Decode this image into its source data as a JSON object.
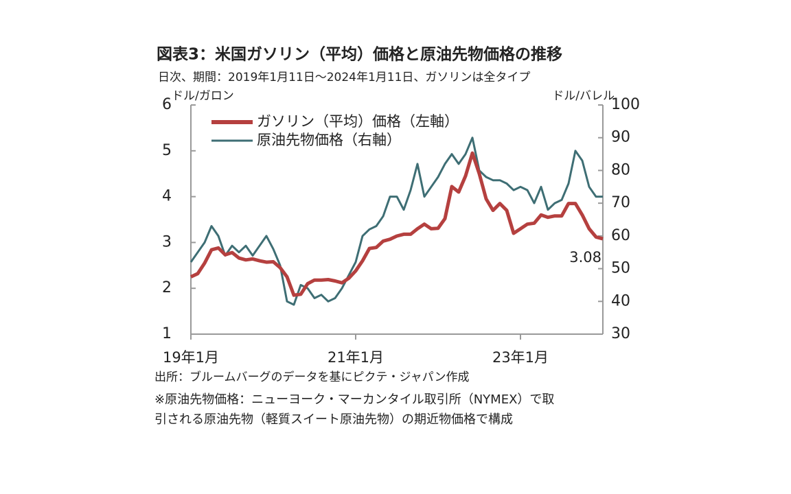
{
  "chart_data": {
    "type": "line",
    "title": "図表3：米国ガソリン（平均）価格と原油先物価格の推移",
    "subtitle": "日次、期間：2019年1月11日～2024年1月11日、ガソリンは全タイプ",
    "y_label": "ドル/ガロン",
    "y2_label": "ドル/バレル",
    "source": "出所：ブルームバーグのデータを基にピクテ・ジャパン作成",
    "notes": [
      "※原油先物価格：ニューヨーク・マーカンタイル取引所（NYMEX）で取",
      "引される原油先物（軽質スイート原油先物）の期近物価格で構成"
    ],
    "annotation": "3.08",
    "x": [
      "2019-01",
      "2019-02",
      "2019-03",
      "2019-04",
      "2019-05",
      "2019-06",
      "2019-07",
      "2019-08",
      "2019-09",
      "2019-10",
      "2019-11",
      "2019-12",
      "2020-01",
      "2020-02",
      "2020-03",
      "2020-04",
      "2020-05",
      "2020-06",
      "2020-07",
      "2020-08",
      "2020-09",
      "2020-10",
      "2020-11",
      "2020-12",
      "2021-01",
      "2021-02",
      "2021-03",
      "2021-04",
      "2021-05",
      "2021-06",
      "2021-07",
      "2021-08",
      "2021-09",
      "2021-10",
      "2021-11",
      "2021-12",
      "2022-01",
      "2022-02",
      "2022-03",
      "2022-04",
      "2022-05",
      "2022-06",
      "2022-07",
      "2022-08",
      "2022-09",
      "2022-10",
      "2022-11",
      "2022-12",
      "2023-01",
      "2023-02",
      "2023-03",
      "2023-04",
      "2023-05",
      "2023-06",
      "2023-07",
      "2023-08",
      "2023-09",
      "2023-10",
      "2023-11",
      "2023-12",
      "2024-01"
    ],
    "series": [
      {
        "name": "ガソリン（平均）価格（左軸）",
        "color": "#b5403f",
        "axis": "y",
        "values": [
          2.25,
          2.32,
          2.55,
          2.84,
          2.88,
          2.73,
          2.78,
          2.66,
          2.62,
          2.64,
          2.6,
          2.57,
          2.58,
          2.45,
          2.25,
          1.85,
          1.87,
          2.1,
          2.18,
          2.18,
          2.19,
          2.16,
          2.12,
          2.22,
          2.38,
          2.6,
          2.87,
          2.89,
          3.03,
          3.07,
          3.14,
          3.18,
          3.18,
          3.3,
          3.4,
          3.3,
          3.31,
          3.52,
          4.22,
          4.1,
          4.45,
          4.95,
          4.5,
          3.95,
          3.7,
          3.85,
          3.7,
          3.2,
          3.3,
          3.4,
          3.42,
          3.6,
          3.55,
          3.58,
          3.58,
          3.85,
          3.85,
          3.6,
          3.3,
          3.12,
          3.08
        ]
      },
      {
        "name": "原油先物価格（右軸）",
        "color": "#3e6e74",
        "axis": "y2",
        "values": [
          52,
          55,
          58,
          63,
          60,
          54,
          57,
          55,
          57,
          54,
          57,
          60,
          56,
          51,
          40,
          39,
          45,
          44,
          41,
          42,
          40,
          41,
          44,
          48,
          52,
          60,
          62,
          63,
          66,
          72,
          72,
          68,
          74,
          82,
          72,
          75,
          78,
          82,
          85,
          82,
          85,
          90,
          80,
          78,
          77,
          77,
          76,
          74,
          75,
          74,
          70,
          75,
          68,
          70,
          71,
          76,
          86,
          83,
          75,
          72,
          72
        ]
      }
    ],
    "xlim": [
      "2019-01",
      "2024-01"
    ],
    "xticks": [
      {
        "value": "2019-01",
        "label": "19年1月"
      },
      {
        "value": "2021-01",
        "label": "21年1月"
      },
      {
        "value": "2023-01",
        "label": "23年1月"
      }
    ],
    "ylim": [
      1,
      6
    ],
    "yticks": [
      1,
      2,
      3,
      4,
      5,
      6
    ],
    "y2lim": [
      30,
      100
    ],
    "y2ticks": [
      30,
      40,
      50,
      60,
      70,
      80,
      90,
      100
    ]
  }
}
